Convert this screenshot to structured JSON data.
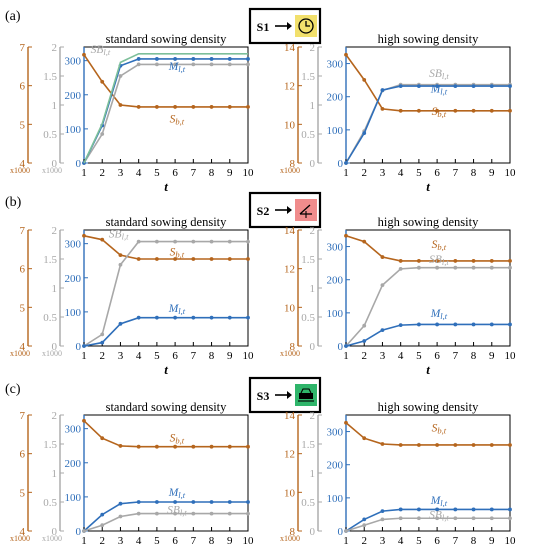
{
  "colors": {
    "brown": "#b5651d",
    "gray": "#a8a8a8",
    "blue": "#2f6fba",
    "green": "#7dbf9a"
  },
  "scenarios": [
    {
      "panel": "(a)",
      "label": "S1",
      "icon": "clock-icon",
      "icon_bg": "#f2e06c"
    },
    {
      "panel": "(b)",
      "label": "S2",
      "icon": "angle-icon",
      "icon_bg": "#f08c8c"
    },
    {
      "panel": "(c)",
      "label": "S3",
      "icon": "machine-icon",
      "icon_bg": "#2fb56a"
    }
  ],
  "units": {
    "left": "x1000",
    "mid": "x1000"
  },
  "chart_data": [
    {
      "type": "line",
      "panel": "(a)",
      "title": "standard sowing density",
      "xlabel": "t",
      "x": [
        1,
        2,
        3,
        4,
        5,
        6,
        7,
        8,
        9,
        10
      ],
      "axes": {
        "outer": [
          4,
          7
        ],
        "outer_ticks": [
          4,
          5,
          6,
          7
        ],
        "mid": [
          0,
          2
        ],
        "mid_ticks": [
          0,
          0.5,
          1,
          1.5,
          2
        ],
        "main": [
          0,
          340
        ],
        "main_ticks": [
          0,
          100,
          200,
          300
        ]
      },
      "series": [
        {
          "name": "Sb,t",
          "axis": "outer",
          "color": "brown",
          "values": [
            6.8,
            6.1,
            5.5,
            5.45,
            5.45,
            5.45,
            5.45,
            5.45,
            5.45,
            5.45
          ],
          "label_at": [
            6.1,
            118
          ]
        },
        {
          "name": "SBl,t",
          "axis": "mid",
          "color": "gray",
          "values": [
            0,
            0.5,
            1.5,
            1.7,
            1.7,
            1.7,
            1.7,
            1.7,
            1.7,
            1.7
          ],
          "label_at": [
            1.9,
            322
          ]
        },
        {
          "name": "Ml,t",
          "axis": "main",
          "color": "blue",
          "values": [
            0,
            110,
            285,
            305,
            305,
            305,
            305,
            305,
            305,
            305
          ],
          "label_at": [
            6.1,
            272
          ]
        },
        {
          "name": "",
          "axis": "main",
          "color": "green",
          "values": [
            0,
            115,
            295,
            320,
            320,
            320,
            320,
            320,
            320,
            320
          ],
          "markers": false
        }
      ]
    },
    {
      "type": "line",
      "panel": "(a)",
      "title": "high sowing density",
      "xlabel": "t",
      "x": [
        1,
        2,
        3,
        4,
        5,
        6,
        7,
        8,
        9,
        10
      ],
      "axes": {
        "outer": [
          8,
          14
        ],
        "outer_ticks": [
          8,
          10,
          12,
          14
        ],
        "mid": [
          0,
          2
        ],
        "mid_ticks": [
          0,
          0.5,
          1,
          1.5,
          2
        ],
        "main": [
          0,
          350
        ],
        "main_ticks": [
          0,
          100,
          200,
          300
        ]
      },
      "series": [
        {
          "name": "Sb,t",
          "axis": "outer",
          "color": "brown",
          "values": [
            13.6,
            12.3,
            10.8,
            10.7,
            10.7,
            10.7,
            10.7,
            10.7,
            10.7,
            10.7
          ],
          "label_at": [
            6.1,
            145
          ]
        },
        {
          "name": "SBl,t",
          "axis": "mid",
          "color": "gray",
          "values": [
            0,
            0.55,
            1.25,
            1.35,
            1.35,
            1.35,
            1.35,
            1.35,
            1.35,
            1.35
          ],
          "label_at": [
            6.1,
            260
          ]
        },
        {
          "name": "Ml,t",
          "axis": "main",
          "color": "blue",
          "values": [
            0,
            90,
            220,
            232,
            232,
            232,
            232,
            232,
            232,
            232
          ],
          "label_at": [
            6.1,
            213
          ]
        }
      ]
    },
    {
      "type": "line",
      "panel": "(b)",
      "title": "standard sowing density",
      "xlabel": "t",
      "x": [
        1,
        2,
        3,
        4,
        5,
        6,
        7,
        8,
        9,
        10
      ],
      "axes": {
        "outer": [
          4,
          7
        ],
        "outer_ticks": [
          4,
          5,
          6,
          7
        ],
        "mid": [
          0,
          2
        ],
        "mid_ticks": [
          0,
          0.5,
          1,
          1.5,
          2
        ],
        "main": [
          0,
          340
        ],
        "main_ticks": [
          0,
          100,
          200,
          300
        ]
      },
      "series": [
        {
          "name": "Sb,t",
          "axis": "outer",
          "color": "brown",
          "values": [
            6.85,
            6.75,
            6.35,
            6.25,
            6.25,
            6.25,
            6.25,
            6.25,
            6.25,
            6.25
          ],
          "label_at": [
            6.1,
            265
          ]
        },
        {
          "name": "SBl,t",
          "axis": "mid",
          "color": "gray",
          "values": [
            0,
            0.2,
            1.4,
            1.8,
            1.8,
            1.8,
            1.8,
            1.8,
            1.8,
            1.8
          ],
          "label_at": [
            2.9,
            318
          ]
        },
        {
          "name": "Ml,t",
          "axis": "main",
          "color": "blue",
          "values": [
            0,
            10,
            65,
            83,
            83,
            83,
            83,
            83,
            83,
            83
          ],
          "label_at": [
            6.1,
            100
          ]
        }
      ]
    },
    {
      "type": "line",
      "panel": "(b)",
      "title": "high sowing density",
      "xlabel": "t",
      "x": [
        1,
        2,
        3,
        4,
        5,
        6,
        7,
        8,
        9,
        10
      ],
      "axes": {
        "outer": [
          8,
          14
        ],
        "outer_ticks": [
          8,
          10,
          12,
          14
        ],
        "mid": [
          0,
          2
        ],
        "mid_ticks": [
          0,
          0.5,
          1,
          1.5,
          2
        ],
        "main": [
          0,
          350
        ],
        "main_ticks": [
          0,
          100,
          200,
          300
        ]
      },
      "series": [
        {
          "name": "Sb,t",
          "axis": "outer",
          "color": "brown",
          "values": [
            13.7,
            13.4,
            12.6,
            12.4,
            12.4,
            12.4,
            12.4,
            12.4,
            12.4,
            12.4
          ],
          "label_at": [
            6.1,
            295
          ]
        },
        {
          "name": "SBl,t",
          "axis": "mid",
          "color": "gray",
          "values": [
            0,
            0.35,
            1.05,
            1.33,
            1.35,
            1.35,
            1.35,
            1.35,
            1.35,
            1.35
          ],
          "label_at": [
            6.1,
            250
          ]
        },
        {
          "name": "Ml,t",
          "axis": "main",
          "color": "blue",
          "values": [
            0,
            15,
            48,
            63,
            65,
            65,
            65,
            65,
            65,
            65
          ],
          "label_at": [
            6.1,
            88
          ]
        }
      ]
    },
    {
      "type": "line",
      "panel": "(c)",
      "title": "standard sowing density",
      "xlabel": "t",
      "x": [
        1,
        2,
        3,
        4,
        5,
        6,
        7,
        8,
        9,
        10
      ],
      "axes": {
        "outer": [
          4,
          7
        ],
        "outer_ticks": [
          4,
          5,
          6,
          7
        ],
        "mid": [
          0,
          2
        ],
        "mid_ticks": [
          0,
          0.5,
          1,
          1.5,
          2
        ],
        "main": [
          0,
          340
        ],
        "main_ticks": [
          0,
          100,
          200,
          300
        ]
      },
      "series": [
        {
          "name": "Sb,t",
          "axis": "outer",
          "color": "brown",
          "values": [
            6.85,
            6.4,
            6.2,
            6.18,
            6.18,
            6.18,
            6.18,
            6.18,
            6.18,
            6.18
          ],
          "label_at": [
            6.1,
            262
          ]
        },
        {
          "name": "Ml,t",
          "axis": "main",
          "color": "blue",
          "values": [
            0,
            48,
            80,
            85,
            85,
            85,
            85,
            85,
            85,
            85
          ],
          "label_at": [
            6.1,
            103
          ]
        },
        {
          "name": "SBl,t",
          "axis": "mid",
          "color": "gray",
          "values": [
            0,
            0.1,
            0.25,
            0.3,
            0.3,
            0.3,
            0.3,
            0.3,
            0.3,
            0.3
          ],
          "label_at": [
            6.1,
            52
          ]
        }
      ]
    },
    {
      "type": "line",
      "panel": "(c)",
      "title": "high sowing density",
      "xlabel": "t",
      "x": [
        1,
        2,
        3,
        4,
        5,
        6,
        7,
        8,
        9,
        10
      ],
      "axes": {
        "outer": [
          8,
          14
        ],
        "outer_ticks": [
          8,
          10,
          12,
          14
        ],
        "mid": [
          0,
          2
        ],
        "mid_ticks": [
          0,
          0.5,
          1,
          1.5,
          2
        ],
        "main": [
          0,
          350
        ],
        "main_ticks": [
          0,
          100,
          200,
          300
        ]
      },
      "series": [
        {
          "name": "Sb,t",
          "axis": "outer",
          "color": "brown",
          "values": [
            13.6,
            12.8,
            12.5,
            12.45,
            12.45,
            12.45,
            12.45,
            12.45,
            12.45,
            12.45
          ],
          "label_at": [
            6.1,
            300
          ]
        },
        {
          "name": "Ml,t",
          "axis": "main",
          "color": "blue",
          "values": [
            0,
            35,
            60,
            65,
            65,
            65,
            65,
            65,
            65,
            65
          ],
          "label_at": [
            6.1,
            82
          ]
        },
        {
          "name": "SBl,t",
          "axis": "mid",
          "color": "gray",
          "values": [
            0,
            0.1,
            0.2,
            0.22,
            0.22,
            0.22,
            0.22,
            0.22,
            0.22,
            0.22
          ],
          "label_at": [
            6.1,
            38
          ]
        }
      ]
    }
  ]
}
